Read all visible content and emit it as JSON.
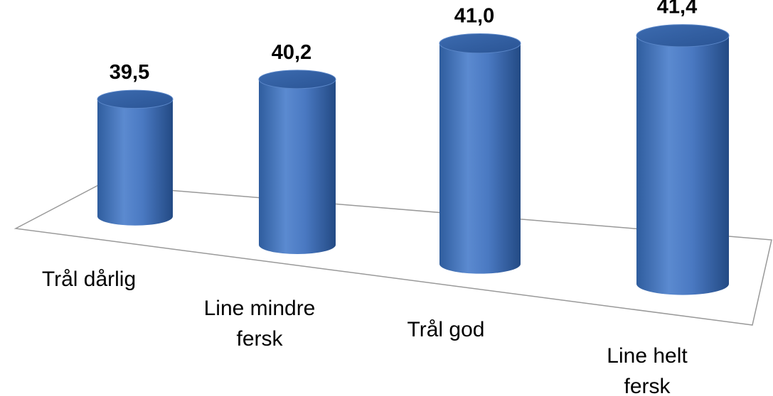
{
  "chart_data": {
    "type": "cylinder",
    "categories": [
      "Trål dårlig",
      "Line mindre\nfersk",
      "Trål god",
      "Line helt\nfersk"
    ],
    "values": [
      39.5,
      40.2,
      41.0,
      41.4
    ],
    "value_labels": [
      "39,5",
      "40,2",
      "41,0",
      "41,4"
    ],
    "color": "#4472c4",
    "ylim": [
      37.8,
      42
    ]
  }
}
